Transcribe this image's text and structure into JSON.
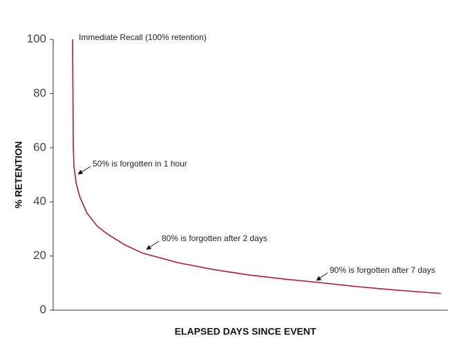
{
  "chart_data": {
    "type": "line",
    "x_label": "ELAPSED DAYS SINCE EVENT",
    "y_label": "% RETENTION",
    "x": [
      0,
      0.02,
      0.04,
      0.1,
      0.2,
      0.4,
      0.7,
      1,
      1.5,
      2,
      3,
      4,
      5,
      6,
      7,
      8,
      9,
      10,
      10.45
    ],
    "series": [
      {
        "color": "#b01c2e",
        "values": [
          100,
          60,
          53,
          47,
          42,
          36,
          31,
          28,
          24,
          21,
          17.5,
          15,
          13,
          11.5,
          10.2,
          8.8,
          7.6,
          6.6,
          6.2
        ]
      }
    ],
    "xlim": [
      -0.55,
      10.65
    ],
    "ylim": [
      0,
      100
    ],
    "yticks": [
      0,
      20,
      40,
      60,
      80,
      100
    ],
    "annotations": [
      "Immediate Recall (100% retention)",
      "50% is forgotten in 1 hour",
      "80% is forgotten after 2 days",
      "90% is forgotten after 7 days"
    ]
  }
}
